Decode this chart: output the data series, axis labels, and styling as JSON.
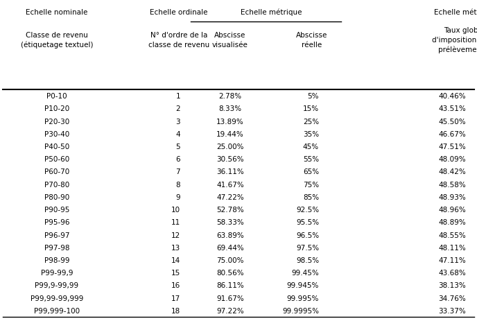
{
  "header_row1": [
    "Echelle nominale",
    "Echelle ordinale",
    "Echelle métrique",
    "Echelle métrique"
  ],
  "header_row2_0": "Classe de revenu\n(étiquetage textuel)",
  "header_row2_1": "N° d'ordre de la\nclasse de revenu",
  "header_row2_2": "Abscisse\nvisualisée",
  "header_row2_3": "Abscisse\nréelle",
  "header_row2_4": "Taux global\nd'imposition (tous\nprélèvements)",
  "col0": [
    "P0-10",
    "P10-20",
    "P20-30",
    "P30-40",
    "P40-50",
    "P50-60",
    "P60-70",
    "P70-80",
    "P80-90",
    "P90-95",
    "P95-96",
    "P96-97",
    "P97-98",
    "P98-99",
    "P99-99,9",
    "P99,9-99,99",
    "P99,99-99,999",
    "P99,999-100"
  ],
  "col1": [
    "1",
    "2",
    "3",
    "4",
    "5",
    "6",
    "7",
    "8",
    "9",
    "10",
    "11",
    "12",
    "13",
    "14",
    "15",
    "16",
    "17",
    "18"
  ],
  "col2": [
    "2.78%",
    "8.33%",
    "13.89%",
    "19.44%",
    "25.00%",
    "30.56%",
    "36.11%",
    "41.67%",
    "47.22%",
    "52.78%",
    "58.33%",
    "63.89%",
    "69.44%",
    "75.00%",
    "80.56%",
    "86.11%",
    "91.67%",
    "97.22%"
  ],
  "col3": [
    "5%",
    "15%",
    "25%",
    "35%",
    "45%",
    "55%",
    "65%",
    "75%",
    "85%",
    "92.5%",
    "95.5%",
    "96.5%",
    "97.5%",
    "98.5%",
    "99.45%",
    "99.945%",
    "99.995%",
    "99.9995%"
  ],
  "col4": [
    "40.46%",
    "43.51%",
    "45.50%",
    "46.67%",
    "47.51%",
    "48.09%",
    "48.42%",
    "48.58%",
    "48.93%",
    "48.96%",
    "48.89%",
    "48.55%",
    "48.11%",
    "47.11%",
    "43.68%",
    "38.13%",
    "34.76%",
    "33.37%"
  ],
  "bg_color": "#ffffff",
  "text_color": "#000000",
  "font_size": 7.5,
  "header_font_size": 7.5
}
